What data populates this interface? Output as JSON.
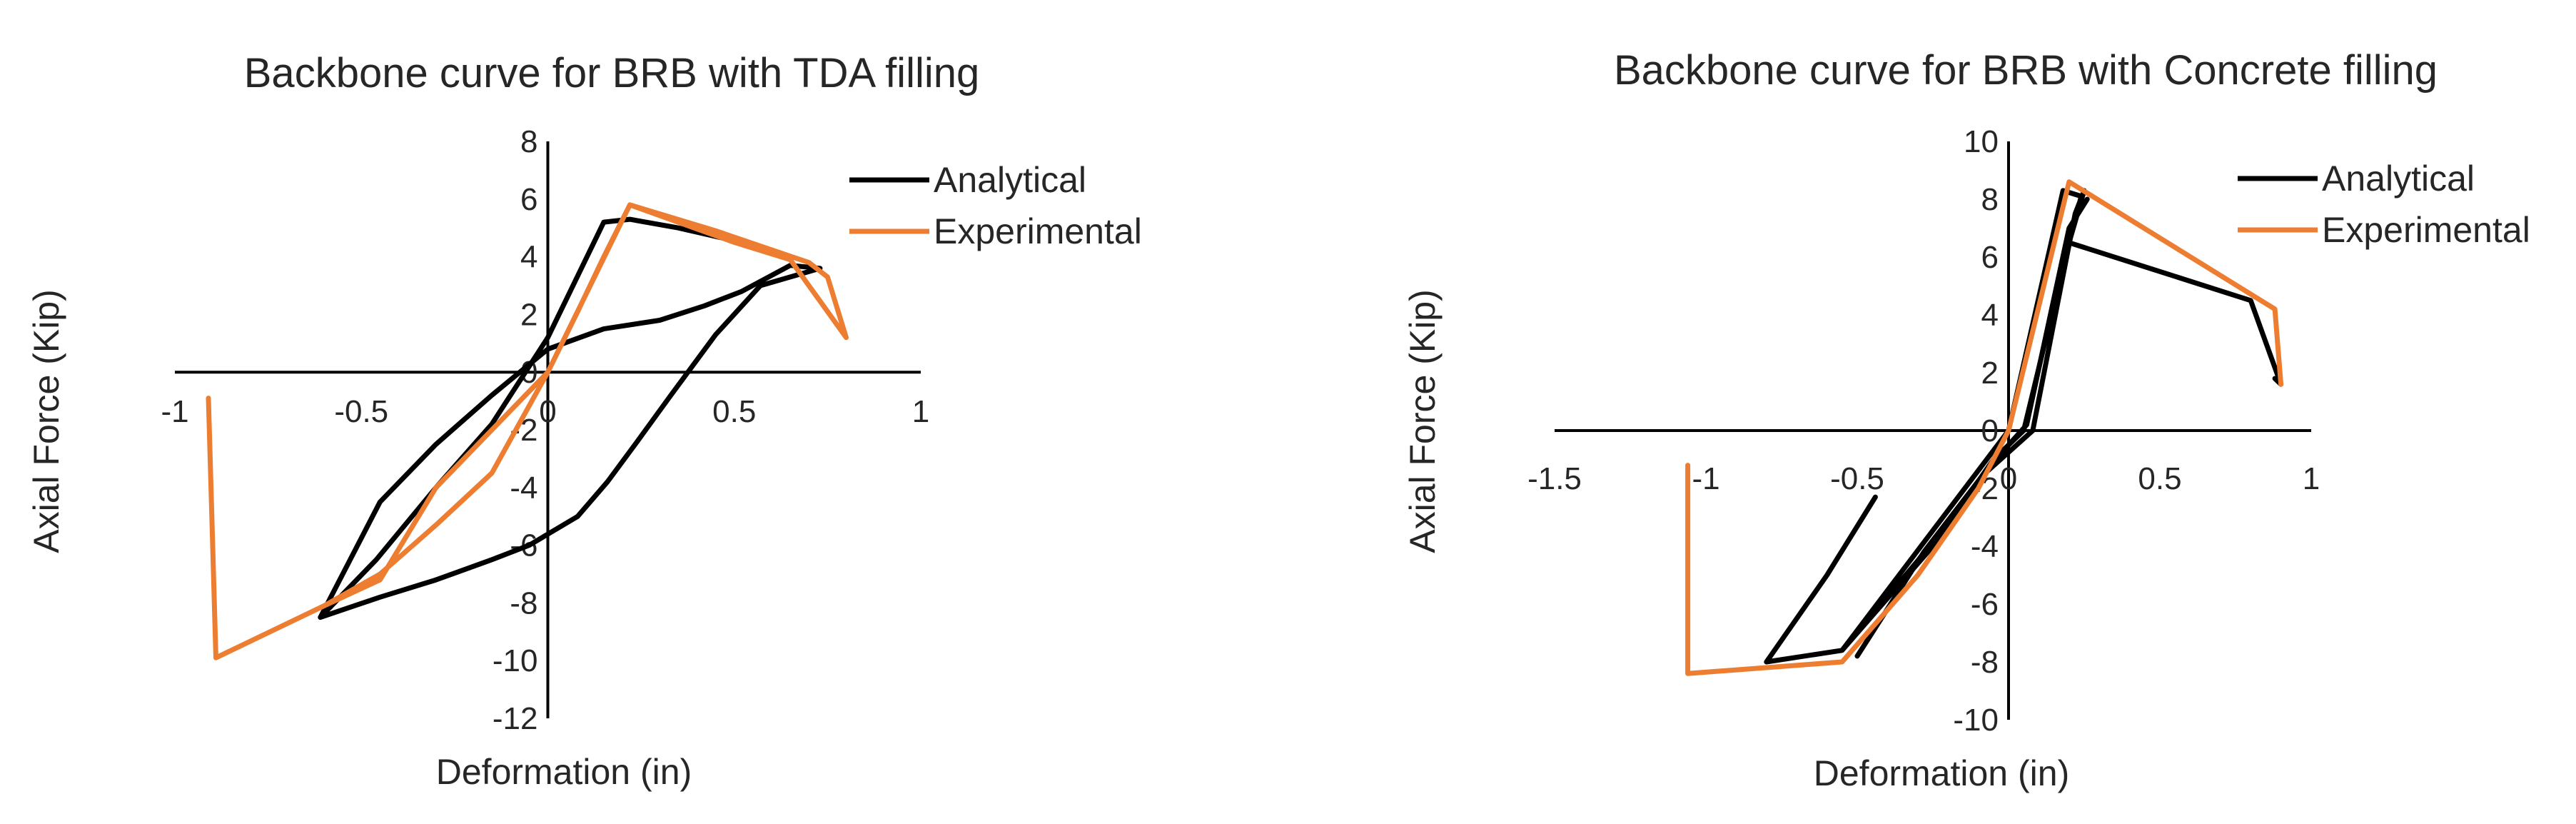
{
  "chart_data": [
    {
      "type": "line",
      "title": "Backbone curve for BRB with TDA filling",
      "xlabel": "Deformation (in)",
      "ylabel": "Axial Force (Kip)",
      "xlim": [
        -1,
        1
      ],
      "ylim": [
        -12,
        8
      ],
      "x_ticks": [
        -1,
        -0.5,
        0,
        0.5,
        1
      ],
      "y_ticks": [
        8,
        6,
        4,
        2,
        0,
        -2,
        -4,
        -6,
        -8,
        -10,
        -12
      ],
      "grid": false,
      "legend_position": "top-right",
      "series": [
        {
          "name": "Analytical",
          "color": "#000000",
          "x": [
            -0.61,
            -0.45,
            -0.3,
            -0.15,
            -0.05,
            0.08,
            0.16,
            0.24,
            0.33,
            0.45,
            0.57,
            0.73,
            0.65,
            0.52,
            0.42,
            0.3,
            0.15,
            0.0,
            -0.15,
            -0.3,
            -0.45,
            -0.61,
            -0.46,
            -0.3,
            -0.15,
            0.0,
            0.15,
            0.22,
            0.35,
            0.52,
            0.64
          ],
          "y": [
            -8.5,
            -7.8,
            -7.2,
            -6.5,
            -6.0,
            -5.0,
            -3.8,
            -2.4,
            -0.8,
            1.3,
            3.0,
            3.6,
            3.7,
            2.8,
            2.3,
            1.8,
            1.5,
            0.8,
            -0.8,
            -2.5,
            -4.5,
            -8.5,
            -6.5,
            -4.0,
            -1.8,
            1.2,
            5.2,
            5.3,
            5.0,
            4.5,
            4.0
          ]
        },
        {
          "name": "Experimental",
          "color": "#ED7D31",
          "x": [
            -0.91,
            -0.89,
            -0.6,
            -0.45,
            -0.3,
            -0.15,
            0.0,
            0.08,
            0.15,
            0.22,
            0.45,
            0.7,
            0.75,
            0.8,
            0.65,
            0.5,
            0.22,
            0.0,
            -0.15,
            -0.3,
            -0.45,
            -0.6,
            -0.89,
            -0.91
          ],
          "y": [
            -0.9,
            -9.9,
            -8.1,
            -7.0,
            -5.3,
            -3.5,
            0.0,
            2.1,
            4.0,
            5.8,
            4.9,
            3.8,
            3.3,
            1.2,
            3.9,
            4.5,
            5.8,
            0.0,
            -2.0,
            -4.0,
            -7.2,
            -8.1,
            -9.9,
            -0.9
          ]
        }
      ]
    },
    {
      "type": "line",
      "title": "Backbone curve for BRB with Concrete filling",
      "xlabel": "Deformation (in)",
      "ylabel": "Axial Force (Kip)",
      "xlim": [
        -1.5,
        1
      ],
      "ylim": [
        -10,
        10
      ],
      "x_ticks": [
        -1.5,
        -1,
        -0.5,
        0,
        0.5,
        1
      ],
      "y_ticks": [
        10,
        8,
        6,
        4,
        2,
        0,
        -2,
        -4,
        -6,
        -8,
        -10
      ],
      "grid": false,
      "legend_position": "top-right",
      "series": [
        {
          "name": "Analytical",
          "color": "#000000",
          "x": [
            -0.44,
            -0.6,
            -0.8,
            -0.55,
            -0.25,
            -0.05,
            0.05,
            0.2,
            0.24,
            0.18,
            0.0,
            -0.55,
            -0.3,
            -0.08,
            0.08,
            0.22,
            0.25,
            0.2,
            0.8,
            0.9,
            0.88
          ],
          "y": [
            -2.3,
            -5.0,
            -8.0,
            -7.6,
            -4.0,
            -1.0,
            0.0,
            6.5,
            8.1,
            8.3,
            0.0,
            -7.6,
            -4.5,
            -1.5,
            0.0,
            7.5,
            8.3,
            6.5,
            4.5,
            1.6,
            1.8
          ],
          "x2": [
            -0.5,
            -0.28,
            -0.06,
            0.06,
            0.2,
            0.26
          ],
          "y2": [
            -7.8,
            -4.2,
            -1.2,
            0.2,
            7.0,
            8.0
          ]
        },
        {
          "name": "Experimental",
          "color": "#ED7D31",
          "x": [
            -1.06,
            -1.06,
            -0.55,
            -0.3,
            -0.1,
            0.0,
            0.2,
            0.88,
            0.9,
            0.88,
            0.2,
            0.0,
            -0.1,
            -0.3,
            -0.55,
            -1.06
          ],
          "y": [
            -1.2,
            -8.4,
            -8.0,
            -5.0,
            -2.0,
            0.0,
            8.6,
            4.2,
            1.6,
            4.2,
            8.6,
            0.0,
            -2.0,
            -5.0,
            -8.0,
            -8.4
          ]
        }
      ]
    }
  ]
}
